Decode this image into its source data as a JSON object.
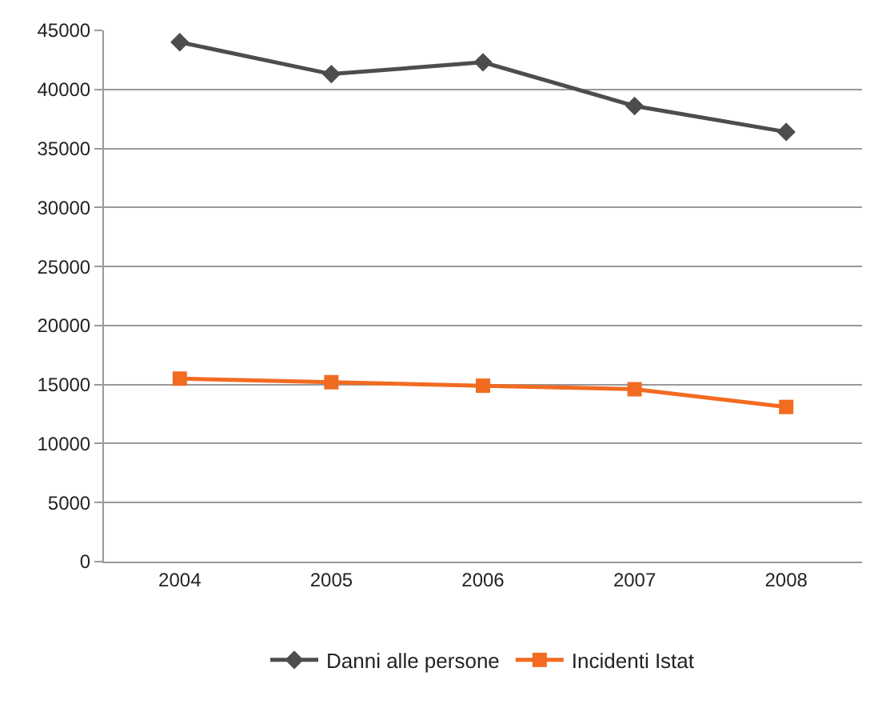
{
  "chart_data": {
    "type": "line",
    "categories": [
      "2004",
      "2005",
      "2006",
      "2007",
      "2008"
    ],
    "series": [
      {
        "name": "Danni alle persone",
        "color": "#4d4d4d",
        "marker": "diamond",
        "values": [
          44000,
          41300,
          42300,
          38600,
          36400
        ]
      },
      {
        "name": "Incidenti Istat",
        "color": "#f26b21",
        "marker": "square",
        "values": [
          15500,
          15200,
          14900,
          14600,
          13100
        ]
      }
    ],
    "ylim": [
      0,
      45000
    ],
    "yticks": [
      0,
      5000,
      10000,
      15000,
      20000,
      25000,
      30000,
      35000,
      40000,
      45000
    ],
    "grid": "y",
    "legend": "bottom",
    "line_style": "solid"
  }
}
